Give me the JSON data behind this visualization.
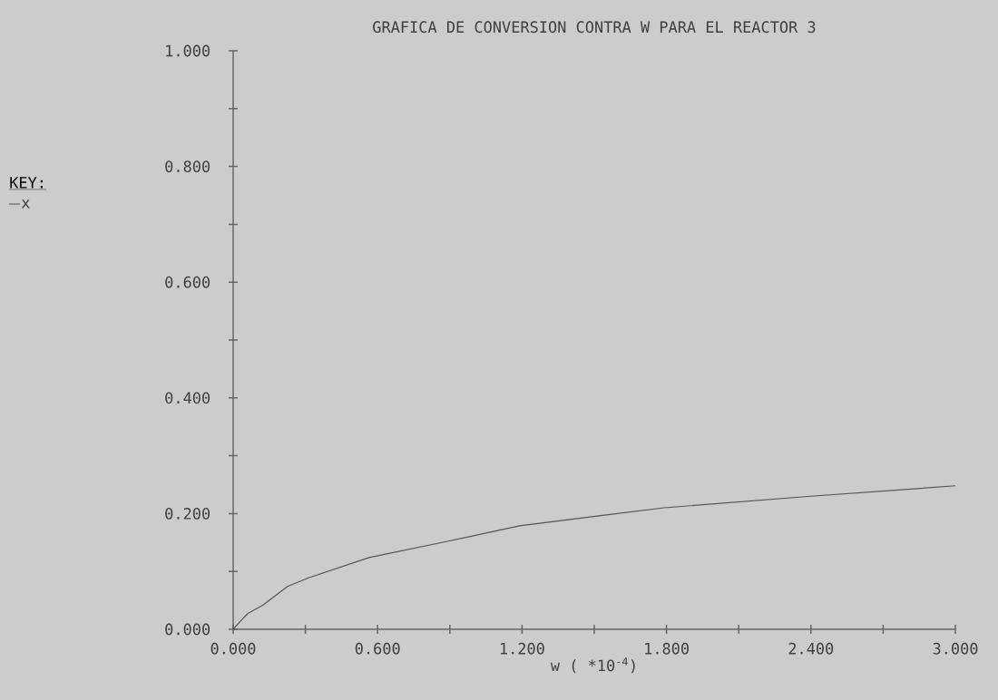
{
  "chart_data": {
    "type": "line",
    "title": "GRAFICA DE CONVERSION CONTRA W PARA EL REACTOR 3",
    "xlabel": "w ( *10$^{-4}$)",
    "legend_title": "KEY:",
    "legend": "left",
    "line_style": "solid",
    "x": [
      0,
      0.03,
      0.06,
      0.124,
      0.226,
      0.313,
      0.565,
      0.89,
      1.19,
      1.52,
      1.79,
      2.4,
      3.0
    ],
    "series": [
      {
        "name": "x",
        "color": "#555555",
        "values": [
          0,
          0.014,
          0.027,
          0.042,
          0.074,
          0.089,
          0.124,
          0.152,
          0.179,
          0.196,
          0.21,
          0.23,
          0.248
        ]
      }
    ],
    "xlim": [
      0,
      3.0
    ],
    "ylim": [
      0,
      1.0
    ],
    "xticks": [
      {
        "value": 0,
        "label": "0.000"
      },
      {
        "value": 0.3,
        "label": null
      },
      {
        "value": 0.6,
        "label": "0.600"
      },
      {
        "value": 0.9,
        "label": null
      },
      {
        "value": 1.2,
        "label": "1.200"
      },
      {
        "value": 1.5,
        "label": null
      },
      {
        "value": 1.8,
        "label": "1.800"
      },
      {
        "value": 2.1,
        "label": null
      },
      {
        "value": 2.4,
        "label": "2.400"
      },
      {
        "value": 2.7,
        "label": null
      },
      {
        "value": 3.0,
        "label": "3.000"
      }
    ],
    "yticks": [
      {
        "value": 0,
        "label": "0.000"
      },
      {
        "value": 0.1,
        "label": null
      },
      {
        "value": 0.2,
        "label": "0.200"
      },
      {
        "value": 0.3,
        "label": null
      },
      {
        "value": 0.4,
        "label": "0.400"
      },
      {
        "value": 0.5,
        "label": null
      },
      {
        "value": 0.6,
        "label": "0.600"
      },
      {
        "value": 0.7,
        "label": null
      },
      {
        "value": 0.8,
        "label": "0.800"
      },
      {
        "value": 0.9,
        "label": null
      },
      {
        "value": 1.0,
        "label": "1.000"
      }
    ]
  }
}
